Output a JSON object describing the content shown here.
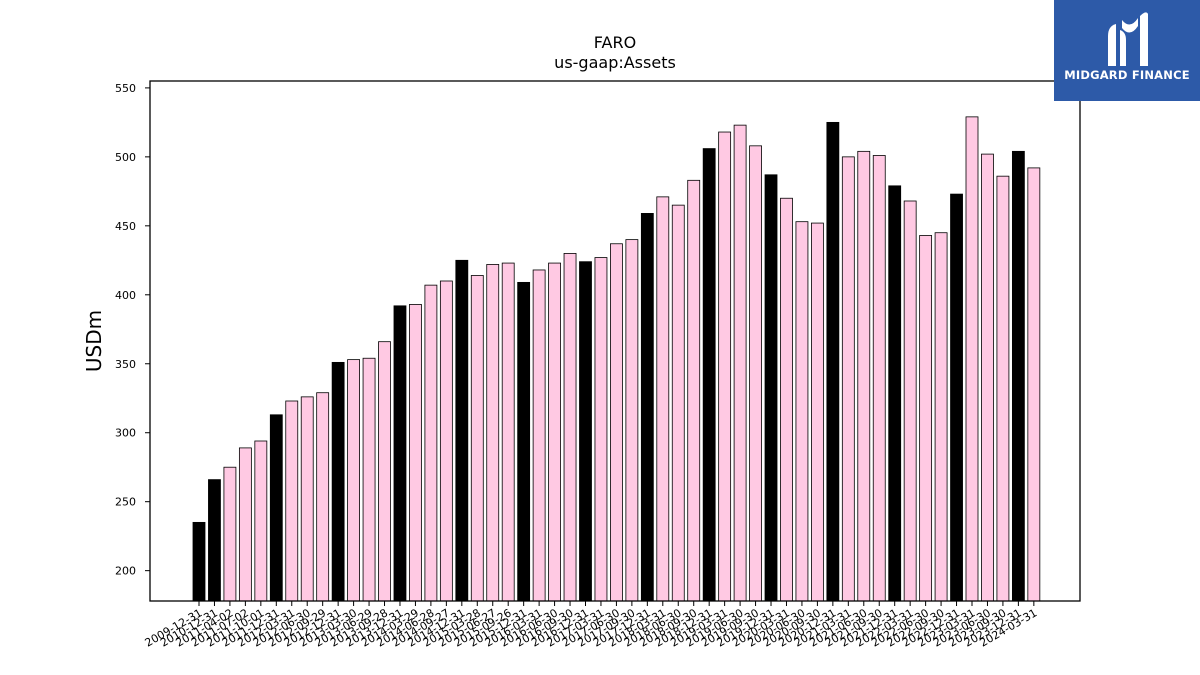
{
  "brand": {
    "name": "MIDGARD FINANCE",
    "color": "#2d5aa8",
    "icon": "midgard-logo-icon"
  },
  "colors": {
    "annual_bar": "#000000",
    "quarter_bar": "#ffc9e3",
    "bar_edge": "#000000"
  },
  "chart_data": {
    "type": "bar",
    "title": "FARO",
    "subtitle": "us-gaap:Assets",
    "xlabel": "",
    "ylabel": "USDm",
    "ylim": [
      178,
      555
    ],
    "yticks": [
      200,
      250,
      300,
      350,
      400,
      450,
      500,
      550
    ],
    "grid": false,
    "legend": "none",
    "categories": [
      "2009-12-31",
      "2010-12-31",
      "2011-04-02",
      "2011-07-02",
      "2011-10-01",
      "2011-12-31",
      "2012-03-31",
      "2012-06-30",
      "2012-09-29",
      "2012-12-31",
      "2013-03-30",
      "2013-06-29",
      "2013-09-28",
      "2013-12-31",
      "2014-03-29",
      "2014-06-28",
      "2014-09-27",
      "2014-12-31",
      "2015-03-28",
      "2015-06-27",
      "2015-09-26",
      "2015-12-31",
      "2016-03-31",
      "2016-06-30",
      "2016-09-30",
      "2016-12-31",
      "2017-03-31",
      "2017-06-30",
      "2017-09-30",
      "2017-12-31",
      "2018-03-31",
      "2018-06-30",
      "2018-09-30",
      "2018-12-31",
      "2019-03-31",
      "2019-06-30",
      "2019-09-30",
      "2019-12-31",
      "2020-03-31",
      "2020-06-30",
      "2020-09-30",
      "2020-12-31",
      "2021-03-31",
      "2021-06-30",
      "2021-09-30",
      "2021-12-31",
      "2022-03-31",
      "2022-06-30",
      "2022-09-30",
      "2022-12-31",
      "2023-03-31",
      "2023-06-30",
      "2023-09-30",
      "2023-12-31",
      "2024-03-31"
    ],
    "values": [
      235,
      266,
      275,
      289,
      294,
      313,
      323,
      326,
      329,
      351,
      353,
      354,
      366,
      392,
      393,
      407,
      410,
      425,
      414,
      422,
      423,
      409,
      418,
      423,
      430,
      424,
      427,
      437,
      440,
      459,
      471,
      465,
      483,
      506,
      518,
      523,
      508,
      487,
      470,
      453,
      452,
      525,
      500,
      504,
      501,
      479,
      468,
      443,
      445,
      473,
      529,
      502,
      486,
      504,
      492
    ],
    "annual": [
      true,
      true,
      false,
      false,
      false,
      true,
      false,
      false,
      false,
      true,
      false,
      false,
      false,
      true,
      false,
      false,
      false,
      true,
      false,
      false,
      false,
      true,
      false,
      false,
      false,
      true,
      false,
      false,
      false,
      true,
      false,
      false,
      false,
      true,
      false,
      false,
      false,
      true,
      false,
      false,
      false,
      true,
      false,
      false,
      false,
      true,
      false,
      false,
      false,
      true,
      false,
      false,
      false,
      true,
      false
    ]
  }
}
